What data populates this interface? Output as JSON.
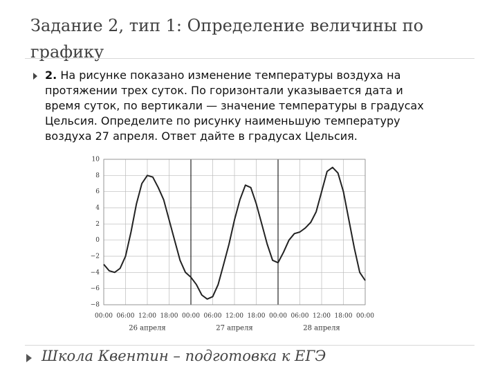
{
  "header": {
    "title": "Задание 2, тип 1: Определение величины по графику"
  },
  "body": {
    "number": "2.",
    "lines": [
      "На рисунке показано изменение температуры воздуха на",
      "протяжении трех суток. По горизонтали указывается дата и",
      "время суток, по вертикали — значение температуры в градусах",
      "Цельсия. Определите по рисунку наименьшую температуру",
      "воздуха 27 апреля. Ответ дайте в градусах Цельсия."
    ]
  },
  "chart_data": {
    "type": "line",
    "x": [
      0,
      1.5,
      3,
      4.5,
      6,
      7.5,
      9,
      10.5,
      12,
      13.5,
      15,
      16.5,
      18,
      19.5,
      21,
      22.5,
      24,
      25.5,
      27,
      28.5,
      30,
      31.5,
      33,
      34.5,
      36,
      37.5,
      39,
      40.5,
      42,
      43.5,
      45,
      46.5,
      48,
      49.5,
      51,
      52.5,
      54,
      55.5,
      57,
      58.5,
      60,
      61.5,
      63,
      64.5,
      66,
      67.5,
      69,
      70.5,
      72
    ],
    "values": [
      -3,
      -3.8,
      -4,
      -3.5,
      -2,
      1,
      4.5,
      7,
      8,
      7.8,
      6.5,
      5,
      2.5,
      0,
      -2.5,
      -4,
      -4.6,
      -5.5,
      -6.8,
      -7.3,
      -7,
      -5.5,
      -3,
      -0.5,
      2.5,
      5,
      6.8,
      6.5,
      4.5,
      2,
      -0.5,
      -2.5,
      -2.8,
      -1.5,
      0,
      0.8,
      1,
      1.5,
      2.2,
      3.5,
      6,
      8.5,
      9,
      8.3,
      6,
      2.5,
      -1,
      -4,
      -5
    ],
    "color": "#222222",
    "xlim": [
      0,
      72
    ],
    "xticks": [
      {
        "value": 0,
        "label": "00:00"
      },
      {
        "value": 6,
        "label": "06:00"
      },
      {
        "value": 12,
        "label": "12:00"
      },
      {
        "value": 18,
        "label": "18:00"
      },
      {
        "value": 24,
        "label": "00:00"
      },
      {
        "value": 30,
        "label": "06:00"
      },
      {
        "value": 36,
        "label": "12:00"
      },
      {
        "value": 42,
        "label": "18:00"
      },
      {
        "value": 48,
        "label": "00:00"
      },
      {
        "value": 54,
        "label": "06:00"
      },
      {
        "value": 60,
        "label": "12:00"
      },
      {
        "value": 66,
        "label": "18:00"
      },
      {
        "value": 72,
        "label": "00:00"
      }
    ],
    "ylim": [
      -8,
      10
    ],
    "yticks": [
      {
        "value": -8,
        "label": "−8"
      },
      {
        "value": -6,
        "label": "−6"
      },
      {
        "value": -4,
        "label": "−4"
      },
      {
        "value": -2,
        "label": "−2"
      },
      0,
      2,
      4,
      6,
      8,
      10
    ],
    "day_labels": [
      "26 апреля",
      "27 апреля",
      "28 апреля"
    ],
    "grid": true
  },
  "footer": {
    "text": "Школа Квентин – подготовка к ЕГЭ"
  }
}
